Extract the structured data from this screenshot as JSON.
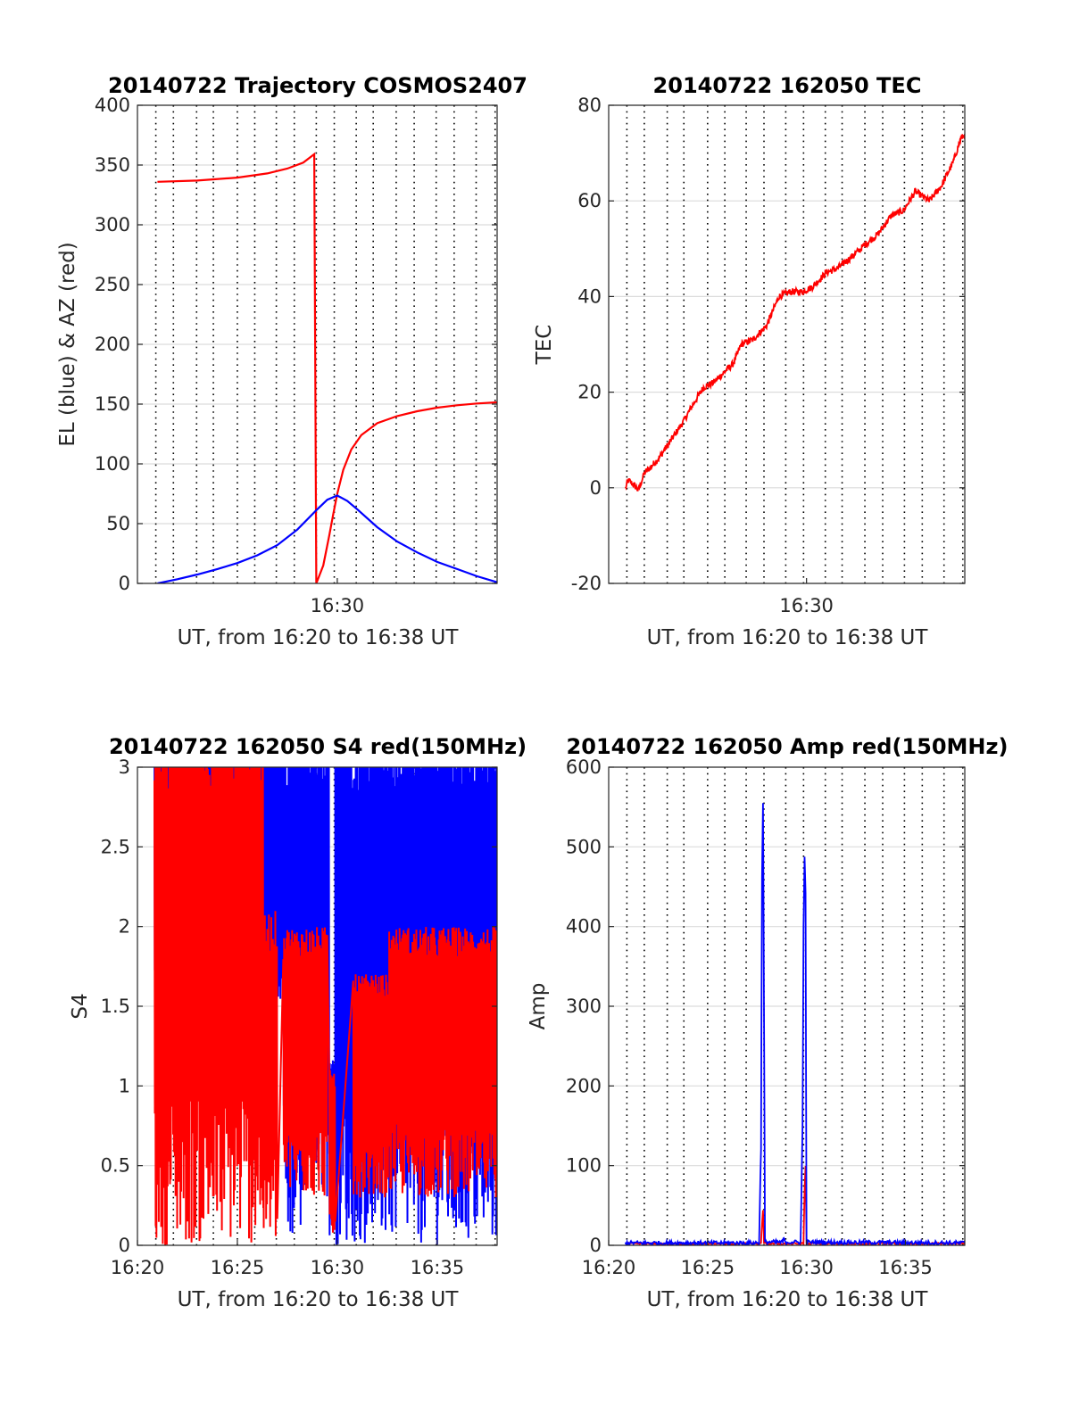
{
  "figure": {
    "background": "#ffffff"
  },
  "chart_data": [
    {
      "id": "traj",
      "type": "line",
      "title": "20140722 Trajectory COSMOS2407",
      "xlabel": "UT, from 16:20 to 16:38 UT",
      "ylabel": "EL (blue) & AZ (red)",
      "xlim": [
        0,
        18
      ],
      "ylim": [
        0,
        400
      ],
      "yticks": [
        0,
        50,
        100,
        150,
        200,
        250,
        300,
        350,
        400
      ],
      "xticks": [
        {
          "value": 10,
          "label": "16:30"
        }
      ],
      "grid": true,
      "series": [
        {
          "color": "#ff0000",
          "kind": "line",
          "points": [
            [
              1,
              336
            ],
            [
              3,
              337
            ],
            [
              5,
              339.5
            ],
            [
              6.5,
              343
            ],
            [
              7.5,
              347
            ],
            [
              8.3,
              352
            ],
            [
              8.85,
              359
            ],
            [
              8.95,
              0
            ],
            [
              9.3,
              15
            ],
            [
              9.6,
              40
            ],
            [
              9.8,
              58
            ],
            [
              10,
              75
            ],
            [
              10.3,
              95
            ],
            [
              10.7,
              112
            ],
            [
              11.2,
              124
            ],
            [
              12,
              134
            ],
            [
              13,
              140
            ],
            [
              14,
              144
            ],
            [
              15,
              147
            ],
            [
              16,
              149
            ],
            [
              17,
              150.5
            ],
            [
              18,
              151.5
            ]
          ]
        },
        {
          "color": "#0000ff",
          "kind": "line",
          "points": [
            [
              1,
              0
            ],
            [
              2,
              3.5
            ],
            [
              3,
              7.5
            ],
            [
              4,
              12
            ],
            [
              5,
              17
            ],
            [
              6,
              23.5
            ],
            [
              7,
              32
            ],
            [
              8,
              45
            ],
            [
              9,
              62
            ],
            [
              9.5,
              70
            ],
            [
              10,
              73.5
            ],
            [
              10.5,
              69
            ],
            [
              11,
              62
            ],
            [
              12,
              47
            ],
            [
              13,
              35
            ],
            [
              14,
              26
            ],
            [
              15,
              18
            ],
            [
              16,
              12
            ],
            [
              17,
              6
            ],
            [
              18,
              1
            ]
          ]
        }
      ]
    },
    {
      "id": "tec",
      "type": "line",
      "title": "20140722 162050 TEC",
      "xlabel": "UT, from 16:20 to 16:38 UT",
      "ylabel": "TEC",
      "xlim": [
        0,
        18
      ],
      "ylim": [
        -20,
        80
      ],
      "yticks": [
        -20,
        0,
        20,
        40,
        60,
        80
      ],
      "xticks": [
        {
          "value": 10,
          "label": "16:30"
        }
      ],
      "grid": true,
      "series": [
        {
          "color": "#ff0000",
          "kind": "noisyline",
          "noise": 0.7,
          "density": 40,
          "points": [
            [
              0.85,
              0
            ],
            [
              1.0,
              1.5
            ],
            [
              1.3,
              0.5
            ],
            [
              1.5,
              -0.5
            ],
            [
              1.8,
              3
            ],
            [
              2.5,
              6
            ],
            [
              3.0,
              9
            ],
            [
              3.8,
              14
            ],
            [
              4.2,
              17
            ],
            [
              4.8,
              21
            ],
            [
              5.3,
              22
            ],
            [
              5.8,
              24
            ],
            [
              6.3,
              26
            ],
            [
              6.7,
              30
            ],
            [
              7.3,
              31
            ],
            [
              8.0,
              34
            ],
            [
              8.6,
              40
            ],
            [
              9.2,
              41
            ],
            [
              9.8,
              41
            ],
            [
              10.3,
              42
            ],
            [
              11.0,
              45
            ],
            [
              11.6,
              46
            ],
            [
              12.2,
              48
            ],
            [
              13.0,
              51
            ],
            [
              13.6,
              53
            ],
            [
              14.3,
              57
            ],
            [
              14.9,
              58
            ],
            [
              15.5,
              62
            ],
            [
              16.2,
              60
            ],
            [
              16.8,
              63
            ],
            [
              17.4,
              68
            ],
            [
              17.8,
              73
            ],
            [
              18,
              74
            ]
          ]
        }
      ]
    },
    {
      "id": "s4",
      "type": "line",
      "title": "20140722 162050 S4 red(150MHz)",
      "xlabel": "UT, from 16:20 to 16:38 UT",
      "ylabel": "S4",
      "xlim": [
        0,
        18
      ],
      "ylim": [
        0,
        3
      ],
      "yticks": [
        0,
        0.5,
        1,
        1.5,
        2,
        2.5,
        3
      ],
      "xticks": [
        {
          "value": 0,
          "label": "16:20"
        },
        {
          "value": 5,
          "label": "16:25"
        },
        {
          "value": 10,
          "label": "16:30"
        },
        {
          "value": 15,
          "label": "16:35"
        }
      ],
      "grid": true,
      "series": [
        {
          "color": "#0000ff",
          "kind": "band",
          "density": 55,
          "segments": [
            [
              0.85,
              7.3,
              1.3,
              3
            ],
            [
              7.3,
              8.2,
              0,
              3
            ],
            [
              8.2,
              9.6,
              0.3,
              3
            ],
            [
              9.6,
              9.9,
              0.05,
              0.9
            ],
            [
              9.9,
              11.0,
              0,
              3
            ],
            [
              11.0,
              12.4,
              0,
              3
            ],
            [
              12.4,
              18,
              0,
              3
            ]
          ]
        },
        {
          "color": "#ff0000",
          "kind": "band",
          "density": 50,
          "segments": [
            [
              0.85,
              6.3,
              0,
              3
            ],
            [
              6.3,
              7.0,
              0,
              1.8
            ],
            [
              7.3,
              9.5,
              0.3,
              1.7
            ],
            [
              9.6,
              9.9,
              0.05,
              0.8
            ],
            [
              10.8,
              12.6,
              0.3,
              1.4
            ],
            [
              12.6,
              18,
              0.3,
              1.7
            ]
          ]
        }
      ]
    },
    {
      "id": "amp",
      "type": "line",
      "title": "20140722 162050 Amp red(150MHz)",
      "xlabel": "UT, from 16:20 to 16:38 UT",
      "ylabel": "Amp",
      "xlim": [
        0,
        18
      ],
      "ylim": [
        0,
        600
      ],
      "yticks": [
        0,
        100,
        200,
        300,
        400,
        500,
        600
      ],
      "xticks": [
        {
          "value": 0,
          "label": "16:20"
        },
        {
          "value": 5,
          "label": "16:25"
        },
        {
          "value": 10,
          "label": "16:30"
        },
        {
          "value": 15,
          "label": "16:35"
        }
      ],
      "grid": true,
      "series": [
        {
          "color": "#ff0000",
          "kind": "noisyline",
          "noise": 1.2,
          "density": 20,
          "points": [
            [
              0.85,
              2
            ],
            [
              7.7,
              2
            ],
            [
              7.75,
              25
            ],
            [
              7.8,
              45
            ],
            [
              7.85,
              2
            ],
            [
              9.85,
              2
            ],
            [
              9.9,
              70
            ],
            [
              9.95,
              100
            ],
            [
              10.0,
              2
            ],
            [
              18,
              2
            ]
          ]
        },
        {
          "color": "#0000ff",
          "kind": "noisyline",
          "noise": 2.5,
          "density": 25,
          "points": [
            [
              0.85,
              3
            ],
            [
              7.6,
              3
            ],
            [
              7.7,
              120
            ],
            [
              7.75,
              460
            ],
            [
              7.8,
              556
            ],
            [
              7.85,
              300
            ],
            [
              7.9,
              4
            ],
            [
              8.8,
              4
            ],
            [
              8.85,
              10
            ],
            [
              8.9,
              4
            ],
            [
              9.7,
              4
            ],
            [
              9.8,
              150
            ],
            [
              9.85,
              400
            ],
            [
              9.9,
              490
            ],
            [
              9.95,
              440
            ],
            [
              10.0,
              4
            ],
            [
              18,
              3
            ]
          ]
        }
      ]
    }
  ]
}
